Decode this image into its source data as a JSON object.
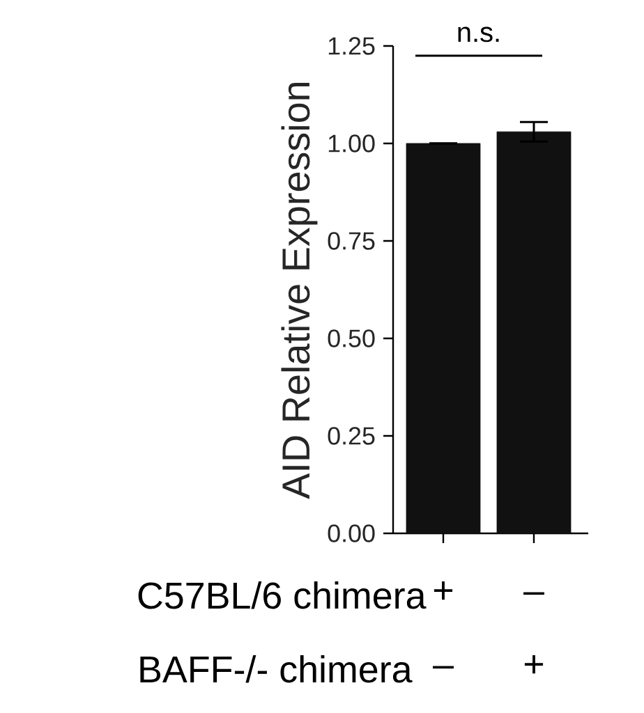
{
  "chart_data": {
    "type": "bar",
    "ylabel": "AID Relative Expression",
    "categories": [
      null,
      null
    ],
    "values": [
      1.0,
      1.03
    ],
    "errors": [
      null,
      0.025
    ],
    "color": "#111111",
    "ylim": [
      0,
      1.25
    ],
    "yticks": [
      {
        "value": 0,
        "label": "0.00"
      },
      {
        "value": 0.25,
        "label": "0.25"
      },
      {
        "value": 0.5,
        "label": "0.50"
      },
      {
        "value": 0.75,
        "label": "0.75"
      },
      {
        "value": 1.0,
        "label": "1.00"
      },
      {
        "value": 1.25,
        "label": "1.25"
      }
    ],
    "grid": false,
    "annotations": [
      "n.s.",
      "C57BL/6 chimera",
      "+",
      "–",
      "BAFF-/- chimera",
      "–",
      "+"
    ]
  }
}
